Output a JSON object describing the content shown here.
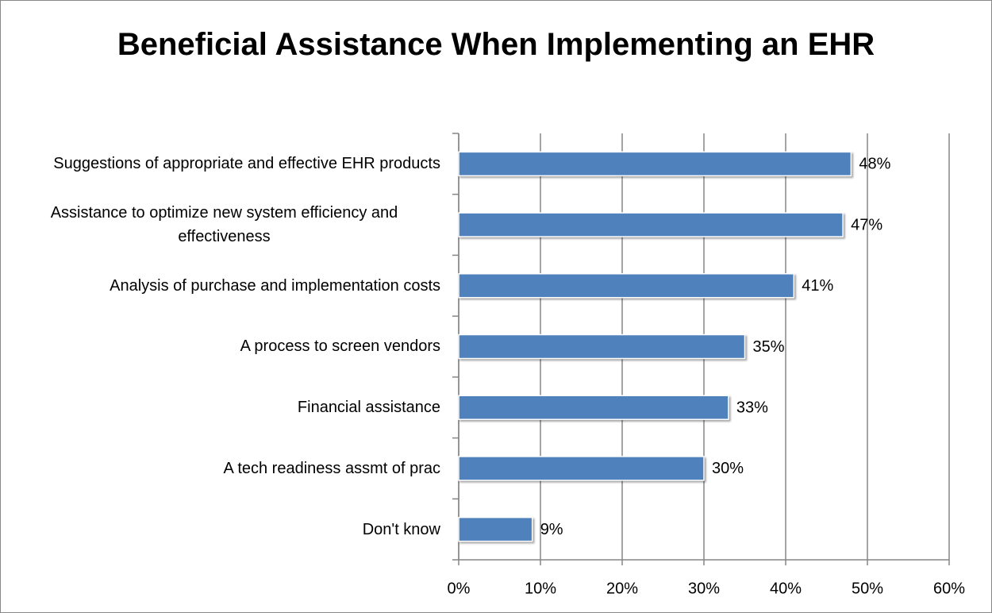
{
  "chart_data": {
    "type": "bar",
    "orientation": "horizontal",
    "title": "Beneficial Assistance When Implementing an EHR",
    "categories": [
      "Suggestions of appropriate and effective EHR products",
      "Assistance to optimize new system efficiency and effectiveness",
      "Analysis of purchase and implementation costs",
      "A process to screen vendors",
      "Financial assistance",
      "A tech readiness assmt of prac",
      "Don't know"
    ],
    "values": [
      48,
      47,
      41,
      35,
      33,
      30,
      9
    ],
    "value_labels": [
      "48%",
      "47%",
      "41%",
      "35%",
      "33%",
      "30%",
      "9%"
    ],
    "color": "#4f81bd",
    "xlim": [
      0,
      60
    ],
    "xticks": [
      {
        "value": 0,
        "label": "0%"
      },
      {
        "value": 10,
        "label": "10%"
      },
      {
        "value": 20,
        "label": "20%"
      },
      {
        "value": 30,
        "label": "30%"
      },
      {
        "value": 40,
        "label": "40%"
      },
      {
        "value": 50,
        "label": "50%"
      },
      {
        "value": 60,
        "label": "60%"
      }
    ],
    "grid": true
  }
}
